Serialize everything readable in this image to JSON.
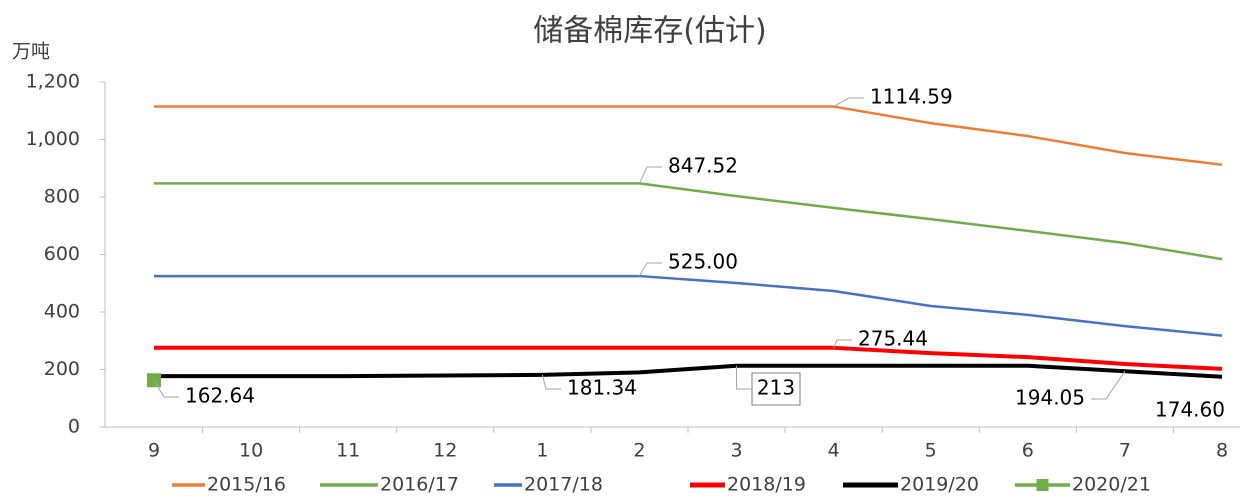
{
  "chart_data": {
    "type": "line",
    "title": "储备棉库存(估计)",
    "y_label": "万吨",
    "categories": [
      "9",
      "10",
      "11",
      "12",
      "1",
      "2",
      "3",
      "4",
      "5",
      "6",
      "7",
      "8"
    ],
    "ylim": [
      0,
      1200
    ],
    "yticks": [
      0,
      200,
      400,
      600,
      800,
      {
        "value": 1000,
        "label": "1,000"
      },
      {
        "value": 1200,
        "label": "1,200"
      }
    ],
    "grid": false,
    "legend": "bottom",
    "series": [
      {
        "name": "2015/16",
        "color": "#ed7d31",
        "values": [
          1114.59,
          1114.59,
          1114.59,
          1114.59,
          1114.59,
          1114.59,
          1114.59,
          1114.59,
          1057,
          1012,
          953,
          912
        ],
        "value_labels": [
          null,
          null,
          null,
          null,
          null,
          null,
          null,
          "1114.59",
          null,
          null,
          null,
          null
        ]
      },
      {
        "name": "2016/17",
        "color": "#70ad47",
        "values": [
          847.52,
          847.52,
          847.52,
          847.52,
          847.52,
          847.52,
          803,
          762,
          723,
          682,
          640,
          584
        ],
        "value_labels": [
          null,
          null,
          null,
          null,
          null,
          "847.52",
          null,
          null,
          null,
          null,
          null,
          null
        ]
      },
      {
        "name": "2017/18",
        "color": "#4472c4",
        "values": [
          525,
          525,
          525,
          525,
          525,
          525,
          501,
          473,
          421,
          390,
          351,
          318
        ],
        "value_labels": [
          null,
          null,
          null,
          null,
          null,
          "525.00",
          null,
          null,
          null,
          null,
          null,
          null
        ]
      },
      {
        "name": "2018/19",
        "color": "#ff0000",
        "values": [
          275.44,
          275.44,
          275.44,
          275.44,
          275.44,
          275.44,
          275.44,
          275.44,
          257,
          243,
          219,
          202
        ],
        "value_labels": [
          null,
          null,
          null,
          null,
          null,
          null,
          null,
          "275.44",
          null,
          null,
          null,
          null
        ]
      },
      {
        "name": "2019/20",
        "color": "#000000",
        "values": [
          177,
          177,
          177,
          179,
          181.34,
          190,
          213,
          213,
          213,
          213,
          194.05,
          174.6
        ],
        "value_labels": [
          null,
          null,
          null,
          null,
          "181.34",
          null,
          "213",
          null,
          null,
          null,
          "194.05",
          "174.60"
        ]
      },
      {
        "name": "2020/21",
        "color": "#70ad47",
        "values": [
          162.64,
          null,
          null,
          null,
          null,
          null,
          null,
          null,
          null,
          null,
          null,
          null
        ],
        "value_labels": [
          "162.64",
          null,
          null,
          null,
          null,
          null,
          null,
          null,
          null,
          null,
          null,
          null
        ]
      }
    ]
  }
}
